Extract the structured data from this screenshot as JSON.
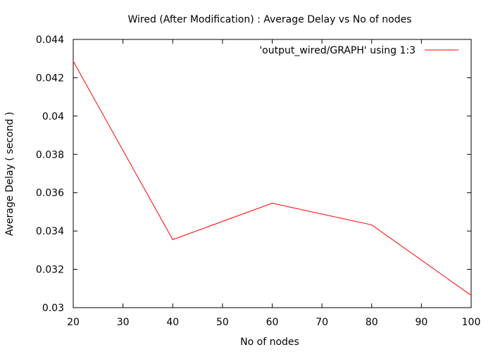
{
  "chart_data": {
    "type": "line",
    "title": "Wired (After Modification) : Average Delay vs No of nodes",
    "xlabel": "No of nodes",
    "ylabel": "Average Delay ( second )",
    "xlim": [
      20,
      100
    ],
    "ylim": [
      0.03,
      0.044
    ],
    "xticks": [
      20,
      30,
      40,
      50,
      60,
      70,
      80,
      90,
      100
    ],
    "xtick_labels": [
      "20",
      "30",
      "40",
      "50",
      "60",
      "70",
      "80",
      "90",
      "100"
    ],
    "yticks": [
      0.03,
      0.032,
      0.034,
      0.036,
      0.038,
      0.04,
      0.042,
      0.044
    ],
    "ytick_labels": [
      "0.03",
      "0.032",
      "0.034",
      "0.036",
      "0.038",
      "0.04",
      "0.042",
      "0.044"
    ],
    "grid": false,
    "legend_position": "top-right",
    "series": [
      {
        "name": "'output_wired/GRAPH' using 1:3",
        "color": "#ff0000",
        "x": [
          20,
          40,
          60,
          80,
          100
        ],
        "y": [
          0.04286,
          0.03355,
          0.03545,
          0.03432,
          0.03064
        ]
      }
    ]
  }
}
